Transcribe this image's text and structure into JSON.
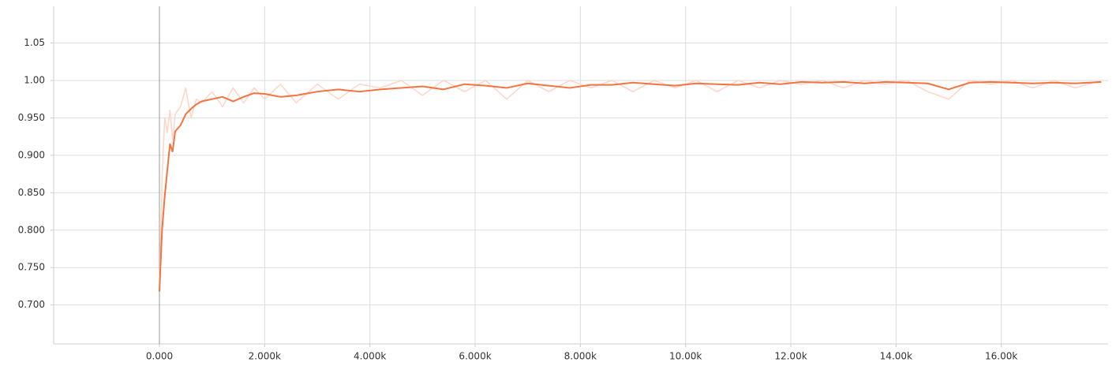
{
  "chart_data": {
    "type": "line",
    "x": [
      0,
      50,
      100,
      150,
      200,
      250,
      300,
      400,
      500,
      600,
      700,
      800,
      1000,
      1200,
      1400,
      1600,
      1800,
      2000,
      2300,
      2600,
      3000,
      3400,
      3800,
      4200,
      4600,
      5000,
      5400,
      5800,
      6200,
      6600,
      7000,
      7400,
      7800,
      8200,
      8600,
      9000,
      9400,
      9800,
      10200,
      10600,
      11000,
      11400,
      11800,
      12200,
      12600,
      13000,
      13400,
      13800,
      14200,
      14600,
      15000,
      15400,
      15800,
      16200,
      16600,
      17000,
      17400,
      17900
    ],
    "series": [
      {
        "color": "#fdd5c6",
        "values": [
          0.718,
          0.87,
          0.95,
          0.93,
          0.96,
          0.92,
          0.955,
          0.965,
          0.99,
          0.95,
          0.975,
          0.97,
          0.985,
          0.965,
          0.99,
          0.97,
          0.99,
          0.975,
          0.995,
          0.97,
          0.995,
          0.975,
          0.995,
          0.99,
          1.0,
          0.98,
          1.0,
          0.985,
          1.0,
          0.975,
          1.0,
          0.985,
          1.0,
          0.99,
          1.0,
          0.985,
          1.0,
          0.99,
          1.0,
          0.985,
          1.0,
          0.99,
          1.0,
          0.995,
          1.0,
          0.99,
          1.0,
          0.995,
          1.0,
          0.985,
          0.975,
          1.0,
          0.995,
          1.0,
          0.99,
          1.0,
          0.99,
          1.0
        ]
      },
      {
        "color": "#f4733f",
        "values": [
          0.718,
          0.8,
          0.845,
          0.88,
          0.915,
          0.905,
          0.932,
          0.94,
          0.955,
          0.962,
          0.968,
          0.972,
          0.975,
          0.978,
          0.972,
          0.978,
          0.983,
          0.982,
          0.978,
          0.98,
          0.985,
          0.988,
          0.985,
          0.988,
          0.99,
          0.992,
          0.988,
          0.995,
          0.993,
          0.99,
          0.996,
          0.993,
          0.99,
          0.994,
          0.994,
          0.997,
          0.995,
          0.993,
          0.996,
          0.995,
          0.994,
          0.997,
          0.995,
          0.998,
          0.997,
          0.998,
          0.996,
          0.998,
          0.997,
          0.996,
          0.988,
          0.997,
          0.998,
          0.997,
          0.996,
          0.997,
          0.996,
          0.998
        ]
      }
    ],
    "xlim": [
      -2010,
      18030
    ],
    "xticks": [
      {
        "value": 0,
        "label": "0.000"
      },
      {
        "value": 2000,
        "label": "2.000k"
      },
      {
        "value": 4000,
        "label": "4.000k"
      },
      {
        "value": 6000,
        "label": "6.000k"
      },
      {
        "value": 8000,
        "label": "8.000k"
      },
      {
        "value": 10000,
        "label": "10.00k"
      },
      {
        "value": 12000,
        "label": "12.00k"
      },
      {
        "value": 14000,
        "label": "14.00k"
      },
      {
        "value": 16000,
        "label": "16.00k"
      }
    ],
    "ylim": [
      0.648,
      1.099
    ],
    "yticks": [
      {
        "value": 0.7,
        "label": "0.700"
      },
      {
        "value": 0.75,
        "label": "0.750"
      },
      {
        "value": 0.8,
        "label": "0.800"
      },
      {
        "value": 0.85,
        "label": "0.850"
      },
      {
        "value": 0.9,
        "label": "0.900"
      },
      {
        "value": 0.95,
        "label": "0.950"
      },
      {
        "value": 1,
        "label": "1.00"
      },
      1.05
    ],
    "grid": true
  }
}
